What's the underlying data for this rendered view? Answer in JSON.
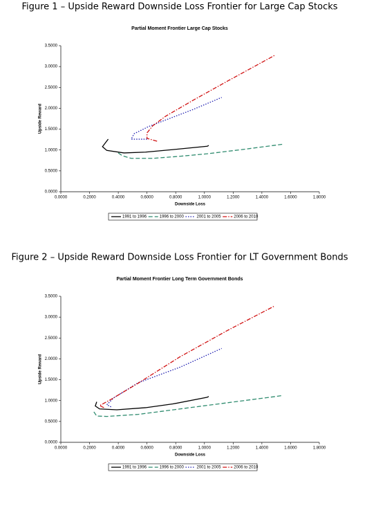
{
  "chart_data": [
    {
      "type": "line",
      "caption": "Figure 1 – Upside Reward Downside Loss Frontier for Large Cap Stocks",
      "title": "Partial Moment Frontier Large Cap Stocks",
      "xlabel": "Downside Loss",
      "ylabel": "Upside Reward",
      "xlim": [
        0,
        1.8
      ],
      "ylim": [
        0,
        3.5
      ],
      "xticks": [
        {
          "value": 0,
          "label": "0.0000"
        },
        {
          "value": 0.2,
          "label": "0.2000"
        },
        {
          "value": 0.4,
          "label": "0.4000"
        },
        {
          "value": 0.6,
          "label": "0.6000"
        },
        {
          "value": 0.8,
          "label": "0.8000"
        },
        {
          "value": 1,
          "label": "1.0000"
        },
        {
          "value": 1.2,
          "label": "1.2000"
        },
        {
          "value": 1.4,
          "label": "1.4000"
        },
        {
          "value": 1.6,
          "label": "1.6000"
        },
        {
          "value": 1.8,
          "label": "1.8000"
        }
      ],
      "yticks": [
        {
          "value": 0,
          "label": "0.0000"
        },
        {
          "value": 0.5,
          "label": "0.5000"
        },
        {
          "value": 1,
          "label": "1.0000"
        },
        {
          "value": 1.5,
          "label": "1.5000"
        },
        {
          "value": 2,
          "label": "2.0000"
        },
        {
          "value": 2.5,
          "label": "2.5000"
        },
        {
          "value": 3,
          "label": "3.0000"
        },
        {
          "value": 3.5,
          "label": "3.5000"
        }
      ],
      "series": [
        {
          "name": "1991 to 1996",
          "color": "#000000",
          "dash": "solid",
          "x": [
            0.33,
            0.29,
            0.32,
            0.44,
            0.59,
            0.78,
            1.02,
            1.03
          ],
          "values": [
            1.26,
            1.08,
            0.99,
            0.93,
            0.95,
            1.01,
            1.09,
            1.11
          ]
        },
        {
          "name": "1996 to 2000",
          "color": "#2e8b6e",
          "dash": "dashed",
          "x": [
            0.4,
            0.43,
            0.49,
            0.64,
            0.83,
            1.02,
            1.26,
            1.55
          ],
          "values": [
            0.93,
            0.86,
            0.8,
            0.8,
            0.85,
            0.91,
            1.01,
            1.14
          ]
        },
        {
          "name": "2001 to 2005",
          "color": "#1c1cb0",
          "dash": "dotted",
          "x": [
            0.6,
            0.49,
            0.51,
            0.61,
            0.73,
            0.92,
            1.12
          ],
          "values": [
            1.26,
            1.26,
            1.39,
            1.56,
            1.72,
            1.97,
            2.26
          ]
        },
        {
          "name": "2006 to 2010",
          "color": "#d01010",
          "dash": "dashdot",
          "x": [
            0.67,
            0.6,
            0.6,
            0.64,
            0.73,
            0.92,
            1.16,
            1.49
          ],
          "values": [
            1.21,
            1.28,
            1.41,
            1.58,
            1.81,
            2.19,
            2.65,
            3.27
          ]
        }
      ]
    },
    {
      "type": "line",
      "caption": "Figure 2 – Upside Reward Downside Loss Frontier for LT Government Bonds",
      "title": "Partial Moment Frontier Long Term Government Bonds",
      "xlabel": "Downside Loss",
      "ylabel": "Upside Reward",
      "xlim": [
        0,
        1.8
      ],
      "ylim": [
        0,
        3.5
      ],
      "xticks": [
        {
          "value": 0,
          "label": "0.0000"
        },
        {
          "value": 0.2,
          "label": "0.2000"
        },
        {
          "value": 0.4,
          "label": "0.4000"
        },
        {
          "value": 0.6,
          "label": "0.6000"
        },
        {
          "value": 0.8,
          "label": "0.8000"
        },
        {
          "value": 1,
          "label": "1.0000"
        },
        {
          "value": 1.2,
          "label": "1.2000"
        },
        {
          "value": 1.4,
          "label": "1.4000"
        },
        {
          "value": 1.6,
          "label": "1.6000"
        },
        {
          "value": 1.8,
          "label": "1.8000"
        }
      ],
      "yticks": [
        {
          "value": 0,
          "label": "0.0000"
        },
        {
          "value": 0.5,
          "label": "0.5000"
        },
        {
          "value": 1,
          "label": "1.0000"
        },
        {
          "value": 1.5,
          "label": "1.5000"
        },
        {
          "value": 2,
          "label": "2.0000"
        },
        {
          "value": 2.5,
          "label": "2.5000"
        },
        {
          "value": 3,
          "label": "3.0000"
        },
        {
          "value": 3.5,
          "label": "3.5000"
        }
      ],
      "series": [
        {
          "name": "1991 to 1996",
          "color": "#000000",
          "dash": "solid",
          "x": [
            0.25,
            0.24,
            0.27,
            0.39,
            0.59,
            0.78,
            1.02,
            1.03
          ],
          "values": [
            0.97,
            0.87,
            0.8,
            0.78,
            0.83,
            0.92,
            1.08,
            1.1
          ]
        },
        {
          "name": "1996 to 2000",
          "color": "#2e8b6e",
          "dash": "dashed",
          "x": [
            0.23,
            0.25,
            0.32,
            0.54,
            0.83,
            1.12,
            1.5,
            1.54
          ],
          "values": [
            0.73,
            0.63,
            0.62,
            0.67,
            0.8,
            0.93,
            1.1,
            1.12
          ]
        },
        {
          "name": "2001 to 2005",
          "color": "#1c1cb0",
          "dash": "dotted",
          "x": [
            0.35,
            0.32,
            0.37,
            0.54,
            0.83,
            1.12
          ],
          "values": [
            0.85,
            0.9,
            1.07,
            1.43,
            1.8,
            2.25
          ]
        },
        {
          "name": "2006 to 2010",
          "color": "#d01010",
          "dash": "dashdot",
          "x": [
            0.3,
            0.27,
            0.35,
            0.54,
            0.83,
            1.16,
            1.49
          ],
          "values": [
            0.83,
            0.88,
            1.03,
            1.42,
            2.05,
            2.68,
            3.27
          ]
        }
      ]
    }
  ]
}
